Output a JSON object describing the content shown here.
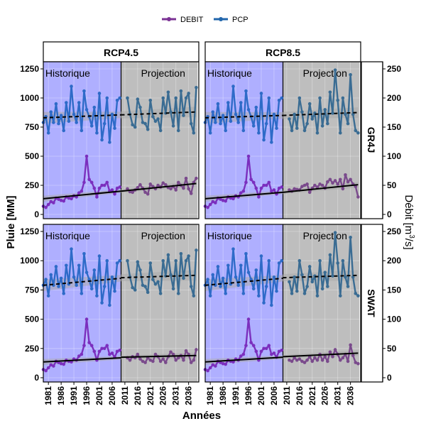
{
  "chart_data": {
    "type": "line",
    "legend": {
      "placement": "top",
      "entries": [
        {
          "name": "DEBIT",
          "color": "#7B3294"
        },
        {
          "name": "PCP",
          "color": "#2166AC"
        }
      ]
    },
    "facet_columns": [
      "RCP4.5",
      "RCP8.5"
    ],
    "facet_rows": [
      "GR4J",
      "SWAT"
    ],
    "xlabel": "Années",
    "ylabel_left": "Pluie [MM]",
    "ylabel_right": "Débit [m³/s]",
    "ylim_left": [
      0,
      1250
    ],
    "ylim_right": [
      0,
      250
    ],
    "yticks_left": [
      0,
      250,
      500,
      750,
      1000,
      1250
    ],
    "yticks_right": [
      0,
      50,
      100,
      150,
      200,
      250
    ],
    "xticks": [
      1981,
      1986,
      1991,
      1996,
      2001,
      2006,
      2011,
      2016,
      2021,
      2026,
      2031,
      2036
    ],
    "xlim": [
      1979,
      2040
    ],
    "period_labels": {
      "historical": "Historique",
      "projection": "Projection"
    },
    "historical_span": [
      1979,
      2009.5
    ],
    "projection_span": [
      2009.5,
      2039.5
    ],
    "colors": {
      "historical_band": "#AFAFFF",
      "projection_band": "#BEBEBE",
      "debit_historical": "#7B2FBE",
      "debit_projection": "#7A4A8C",
      "pcp_historical": "#2E6BC8",
      "pcp_projection": "#3A6C93",
      "trend": "#000000",
      "ci_band": "#A9A9A9"
    },
    "series": {
      "pcp_historical": {
        "x": [
          1979,
          1980,
          1981,
          1982,
          1983,
          1984,
          1985,
          1986,
          1987,
          1988,
          1989,
          1990,
          1991,
          1992,
          1993,
          1994,
          1995,
          1996,
          1997,
          1998,
          1999,
          2000,
          2001,
          2002,
          2003,
          2004,
          2005,
          2006,
          2007,
          2008,
          2009
        ],
        "y": [
          790,
          840,
          700,
          880,
          790,
          950,
          780,
          850,
          720,
          960,
          800,
          1100,
          860,
          790,
          960,
          720,
          1060,
          900,
          840,
          760,
          920,
          700,
          1040,
          640,
          780,
          1000,
          620,
          860,
          740,
          980,
          1000
        ]
      },
      "debit_historical": {
        "x": [
          1979,
          1980,
          1981,
          1982,
          1983,
          1984,
          1985,
          1986,
          1987,
          1988,
          1989,
          1990,
          1991,
          1992,
          1993,
          1994,
          1995,
          1996,
          1997,
          1998,
          1999,
          2000,
          2001,
          2002,
          2003,
          2004,
          2005,
          2006,
          2007,
          2008,
          2009
        ],
        "y": [
          14,
          12,
          17,
          22,
          20,
          28,
          26,
          24,
          23,
          30,
          28,
          27,
          32,
          30,
          37,
          40,
          55,
          100,
          60,
          55,
          45,
          30,
          45,
          50,
          50,
          55,
          40,
          42,
          35,
          45,
          47
        ]
      },
      "panels": [
        {
          "facet": "RCP4.5",
          "model": "GR4J",
          "pcp_projection": [
            1000,
            860,
            770,
            750,
            990,
            920,
            790,
            780,
            730,
            980,
            840,
            800,
            820,
            720,
            1000,
            870,
            1050,
            880,
            760,
            1000,
            720,
            1060,
            850,
            1000,
            1040,
            780,
            700,
            1090
          ],
          "debit_projection": [
            44,
            39,
            38,
            42,
            46,
            51,
            45,
            38,
            35,
            52,
            48,
            44,
            50,
            47,
            54,
            51,
            46,
            44,
            48,
            42,
            55,
            50,
            45,
            62,
            44,
            36,
            55,
            62
          ],
          "debit_trend_hist": [
            27,
            40
          ],
          "debit_trend_proj": [
            40,
            53
          ],
          "pcp_trend_hist": [
            830,
            855
          ],
          "pcp_trend_proj": [
            855,
            880
          ]
        },
        {
          "facet": "RCP8.5",
          "model": "GR4J",
          "pcp_projection": [
            820,
            720,
            860,
            740,
            1000,
            880,
            720,
            780,
            950,
            820,
            870,
            700,
            1000,
            760,
            900,
            780,
            1050,
            870,
            1240,
            980,
            700,
            1000,
            860,
            780,
            1200,
            860,
            720,
            700
          ],
          "debit_projection": [
            42,
            40,
            44,
            43,
            42,
            48,
            50,
            52,
            38,
            45,
            50,
            47,
            52,
            50,
            45,
            56,
            60,
            54,
            58,
            52,
            60,
            44,
            68,
            56,
            60,
            52,
            48,
            30
          ],
          "debit_trend_hist": [
            27,
            38
          ],
          "debit_trend_proj": [
            38,
            51
          ],
          "pcp_trend_hist": [
            830,
            850
          ],
          "pcp_trend_proj": [
            850,
            875
          ]
        },
        {
          "facet": "RCP4.5",
          "model": "SWAT",
          "pcp_projection": [
            1000,
            860,
            770,
            750,
            990,
            920,
            790,
            780,
            730,
            980,
            840,
            800,
            820,
            720,
            1000,
            870,
            1050,
            880,
            760,
            1000,
            720,
            1060,
            850,
            1000,
            1040,
            780,
            700,
            1090
          ],
          "debit_projection": [
            34,
            30,
            36,
            34,
            40,
            32,
            28,
            26,
            34,
            30,
            28,
            40,
            36,
            28,
            32,
            26,
            36,
            44,
            40,
            30,
            34,
            38,
            30,
            46,
            40,
            26,
            30,
            48
          ],
          "debit_trend_hist": [
            27,
            34
          ],
          "debit_trend_proj": [
            35,
            38
          ],
          "pcp_trend_hist": [
            790,
            850
          ],
          "pcp_trend_proj": [
            855,
            875
          ]
        },
        {
          "facet": "RCP8.5",
          "model": "SWAT",
          "pcp_projection": [
            820,
            720,
            860,
            740,
            1000,
            880,
            720,
            780,
            950,
            820,
            870,
            700,
            1000,
            760,
            900,
            780,
            1050,
            870,
            1240,
            980,
            700,
            1000,
            860,
            780,
            1200,
            860,
            720,
            700
          ],
          "debit_projection": [
            30,
            28,
            34,
            30,
            32,
            28,
            26,
            30,
            36,
            28,
            34,
            30,
            40,
            30,
            36,
            28,
            44,
            36,
            48,
            40,
            30,
            34,
            40,
            28,
            56,
            38,
            26,
            24
          ],
          "debit_trend_hist": [
            27,
            35
          ],
          "debit_trend_proj": [
            36,
            42
          ],
          "pcp_trend_hist": [
            790,
            850
          ],
          "pcp_trend_proj": [
            855,
            875
          ]
        }
      ]
    }
  }
}
